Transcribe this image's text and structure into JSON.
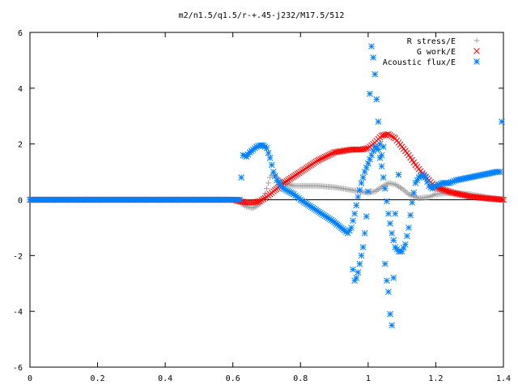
{
  "chart_data": {
    "type": "scatter",
    "title": "m2/n1.5/q1.5/r-+.45-j232/M17.5/512",
    "xlabel": "",
    "ylabel": "",
    "xlim": [
      0,
      1.4
    ],
    "ylim": [
      -6,
      6
    ],
    "xticks": [
      "0",
      "0.2",
      "0.4",
      "0.6",
      "0.8",
      "1",
      "1.2",
      "1.4"
    ],
    "yticks": [
      "-6",
      "-4",
      "-2",
      "0",
      "2",
      "4",
      "6"
    ],
    "grid": false,
    "legend_position": "top-right",
    "series": [
      {
        "name": "R stress/E",
        "color": "#a0a0a0",
        "marker": "plus",
        "x": [
          0,
          0.1,
          0.2,
          0.3,
          0.4,
          0.5,
          0.6,
          0.62,
          0.64,
          0.66,
          0.68,
          0.69,
          0.7,
          0.71,
          0.72,
          0.73,
          0.75,
          0.78,
          0.8,
          0.85,
          0.9,
          0.95,
          1.0,
          1.02,
          1.04,
          1.06,
          1.08,
          1.1,
          1.12,
          1.15,
          1.18,
          1.2,
          1.25,
          1.3,
          1.35,
          1.4
        ],
        "y": [
          0,
          0,
          0,
          0,
          0,
          0,
          0,
          -0.1,
          -0.25,
          -0.3,
          -0.15,
          0.05,
          0.4,
          0.8,
          0.95,
          0.8,
          0.6,
          0.5,
          0.5,
          0.5,
          0.45,
          0.35,
          0.25,
          0.3,
          0.45,
          0.6,
          0.55,
          0.4,
          0.2,
          0.05,
          0.1,
          0.2,
          0.25,
          0.2,
          0.1,
          0.0
        ]
      },
      {
        "name": "G work/E",
        "color": "#ff0000",
        "marker": "cross",
        "x": [
          0,
          0.1,
          0.2,
          0.3,
          0.4,
          0.5,
          0.6,
          0.62,
          0.64,
          0.66,
          0.68,
          0.7,
          0.72,
          0.75,
          0.8,
          0.85,
          0.9,
          0.95,
          0.98,
          1.0,
          1.02,
          1.04,
          1.06,
          1.08,
          1.1,
          1.12,
          1.14,
          1.16,
          1.18,
          1.2,
          1.25,
          1.3,
          1.35,
          1.4
        ],
        "y": [
          0,
          0,
          0,
          0,
          0,
          0,
          0,
          -0.05,
          -0.1,
          -0.1,
          -0.05,
          0.1,
          0.3,
          0.6,
          1.0,
          1.4,
          1.7,
          1.8,
          1.8,
          1.85,
          2.05,
          2.3,
          2.35,
          2.2,
          1.9,
          1.6,
          1.25,
          0.95,
          0.7,
          0.45,
          0.25,
          0.12,
          0.05,
          0.0
        ]
      },
      {
        "name": "Acoustic flux/E",
        "color": "#0080ff",
        "marker": "star",
        "x": [
          0,
          0.1,
          0.2,
          0.3,
          0.4,
          0.5,
          0.6,
          0.62,
          0.63,
          0.64,
          0.65,
          0.66,
          0.67,
          0.68,
          0.69,
          0.7,
          0.71,
          0.72,
          0.73,
          0.75,
          0.78,
          0.8,
          0.85,
          0.9,
          0.93,
          0.94,
          0.95,
          0.96,
          0.97,
          0.98,
          0.99,
          1.0,
          1.01,
          1.02,
          1.03,
          1.04,
          1.05,
          1.06,
          1.07,
          1.08,
          1.09,
          1.1,
          1.11,
          1.12,
          1.13,
          1.14,
          1.15,
          1.16,
          1.17,
          1.18,
          1.19,
          1.2,
          1.22,
          1.24,
          1.26,
          1.28,
          1.3,
          1.32,
          1.34,
          1.36,
          1.38,
          1.39
        ],
        "y": [
          0,
          0,
          0,
          0,
          0,
          0,
          0,
          0,
          1.6,
          1.55,
          1.7,
          1.8,
          1.9,
          1.95,
          1.95,
          1.85,
          1.5,
          1.0,
          0.7,
          0.4,
          0.2,
          0.0,
          -0.4,
          -0.8,
          -1.1,
          -1.2,
          -1.0,
          -0.5,
          0.1,
          0.6,
          1.0,
          1.3,
          1.6,
          1.9,
          1.8,
          1.2,
          0.4,
          -0.5,
          -1.2,
          -1.7,
          -1.85,
          -1.85,
          -1.6,
          -1.0,
          -0.1,
          0.6,
          0.8,
          0.9,
          0.8,
          0.5,
          0.4,
          0.5,
          0.6,
          0.6,
          0.7,
          0.75,
          0.8,
          0.85,
          0.9,
          0.95,
          1.0,
          1.0
        ]
      },
      {
        "name": "",
        "color": "#0080ff",
        "marker": "star",
        "x": [
          0.955,
          0.96,
          0.965,
          0.97,
          0.975,
          0.98,
          0.985,
          0.99,
          0.995,
          1.0,
          1.005,
          1.01,
          1.015,
          1.02,
          1.025,
          1.03,
          1.035,
          1.04,
          1.045,
          1.05,
          1.055,
          1.06,
          1.065,
          1.07,
          1.075,
          1.08,
          1.09,
          1.395
        ],
        "y": [
          -2.5,
          -2.9,
          -2.8,
          -2.6,
          -2.3,
          -2.0,
          -1.7,
          -1.2,
          -0.6,
          0.3,
          3.8,
          5.5,
          5.1,
          4.5,
          3.6,
          2.8,
          2.0,
          1.6,
          1.9,
          -2.3,
          -2.9,
          -3.3,
          -4.1,
          -4.5,
          -2.8,
          -0.5,
          0.9,
          2.8
        ]
      }
    ]
  }
}
